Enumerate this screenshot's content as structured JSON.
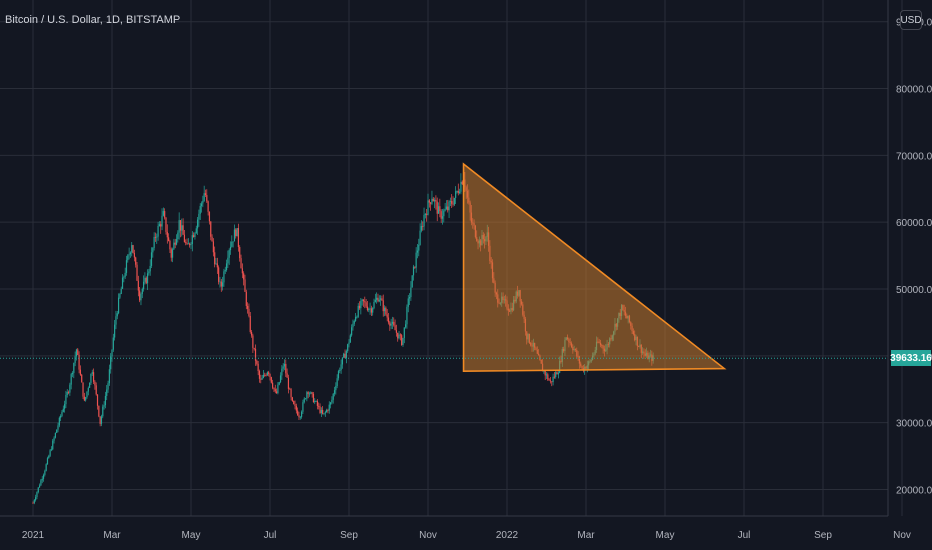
{
  "header": {
    "title": "Bitcoin / U.S. Dollar, 1D, BITSTAMP",
    "unit": "USD"
  },
  "colors": {
    "background": "#131722",
    "grid": "#2a2e39",
    "axis_text": "#b2b5be",
    "up": "#26a69a",
    "down": "#ef5350",
    "pattern_fill": "#c77a2e",
    "pattern_stroke": "#f08a24",
    "last_price_line": "#26a69a"
  },
  "chart_data": {
    "type": "candlestick",
    "x_tick_labels": [
      "2021",
      "Mar",
      "May",
      "Jul",
      "Sep",
      "Nov",
      "2022",
      "Mar",
      "May",
      "Jul",
      "Sep",
      "Nov"
    ],
    "y_tick_labels": [
      "20000.00",
      "30000.00",
      "40000.00",
      "50000.00",
      "60000.00",
      "70000.00",
      "80000.00",
      "90000.00"
    ],
    "y_ticks": [
      20000,
      30000,
      40000,
      50000,
      60000,
      70000,
      80000,
      90000
    ],
    "ylim": [
      17000,
      92000
    ],
    "grid": true,
    "last_price": 39633.16,
    "last_price_label": "39633.16",
    "price_path": [
      {
        "month": 0.0,
        "price": 18000
      },
      {
        "month": 0.3,
        "price": 23000
      },
      {
        "month": 0.6,
        "price": 29000
      },
      {
        "month": 0.9,
        "price": 35000
      },
      {
        "month": 1.1,
        "price": 41000
      },
      {
        "month": 1.3,
        "price": 33000
      },
      {
        "month": 1.5,
        "price": 38000
      },
      {
        "month": 1.7,
        "price": 30000
      },
      {
        "month": 1.9,
        "price": 36000
      },
      {
        "month": 2.1,
        "price": 46000
      },
      {
        "month": 2.3,
        "price": 52000
      },
      {
        "month": 2.5,
        "price": 57000
      },
      {
        "month": 2.7,
        "price": 49000
      },
      {
        "month": 2.9,
        "price": 52000
      },
      {
        "month": 3.1,
        "price": 58000
      },
      {
        "month": 3.3,
        "price": 61000
      },
      {
        "month": 3.5,
        "price": 55000
      },
      {
        "month": 3.7,
        "price": 60000
      },
      {
        "month": 3.9,
        "price": 56000
      },
      {
        "month": 4.1,
        "price": 59000
      },
      {
        "month": 4.35,
        "price": 64800
      },
      {
        "month": 4.55,
        "price": 56000
      },
      {
        "month": 4.75,
        "price": 50000
      },
      {
        "month": 4.95,
        "price": 56000
      },
      {
        "month": 5.15,
        "price": 59000
      },
      {
        "month": 5.35,
        "price": 50000
      },
      {
        "month": 5.55,
        "price": 42000
      },
      {
        "month": 5.75,
        "price": 36000
      },
      {
        "month": 5.95,
        "price": 38000
      },
      {
        "month": 6.15,
        "price": 34000
      },
      {
        "month": 6.35,
        "price": 39000
      },
      {
        "month": 6.55,
        "price": 33000
      },
      {
        "month": 6.75,
        "price": 31000
      },
      {
        "month": 6.95,
        "price": 35000
      },
      {
        "month": 7.15,
        "price": 33000
      },
      {
        "month": 7.35,
        "price": 31000
      },
      {
        "month": 7.55,
        "price": 33000
      },
      {
        "month": 7.75,
        "price": 38000
      },
      {
        "month": 7.95,
        "price": 41000
      },
      {
        "month": 8.15,
        "price": 46000
      },
      {
        "month": 8.35,
        "price": 48000
      },
      {
        "month": 8.55,
        "price": 47000
      },
      {
        "month": 8.75,
        "price": 49000
      },
      {
        "month": 8.95,
        "price": 46000
      },
      {
        "month": 9.15,
        "price": 44000
      },
      {
        "month": 9.35,
        "price": 42000
      },
      {
        "month": 9.5,
        "price": 48000
      },
      {
        "month": 9.7,
        "price": 55000
      },
      {
        "month": 9.9,
        "price": 61000
      },
      {
        "month": 10.1,
        "price": 64000
      },
      {
        "month": 10.3,
        "price": 61000
      },
      {
        "month": 10.5,
        "price": 62000
      },
      {
        "month": 10.7,
        "price": 64000
      },
      {
        "month": 10.9,
        "price": 67000
      },
      {
        "month": 11.1,
        "price": 60000
      },
      {
        "month": 11.3,
        "price": 57000
      },
      {
        "month": 11.5,
        "price": 58000
      },
      {
        "month": 11.7,
        "price": 49000
      },
      {
        "month": 11.9,
        "price": 48000
      },
      {
        "month": 12.1,
        "price": 47000
      },
      {
        "month": 12.3,
        "price": 50000
      },
      {
        "month": 12.5,
        "price": 43000
      },
      {
        "month": 12.7,
        "price": 41000
      },
      {
        "month": 12.9,
        "price": 38000
      },
      {
        "month": 13.1,
        "price": 36000
      },
      {
        "month": 13.3,
        "price": 38000
      },
      {
        "month": 13.5,
        "price": 43000
      },
      {
        "month": 13.7,
        "price": 41000
      },
      {
        "month": 13.9,
        "price": 38000
      },
      {
        "month": 14.1,
        "price": 39000
      },
      {
        "month": 14.3,
        "price": 42000
      },
      {
        "month": 14.5,
        "price": 41000
      },
      {
        "month": 14.7,
        "price": 44000
      },
      {
        "month": 14.9,
        "price": 47000
      },
      {
        "month": 15.1,
        "price": 45000
      },
      {
        "month": 15.3,
        "price": 42000
      },
      {
        "month": 15.5,
        "price": 40000
      },
      {
        "month": 15.7,
        "price": 39633
      }
    ],
    "pattern": {
      "type": "descending-triangle",
      "vertices": [
        {
          "month": 10.9,
          "price": 68700
        },
        {
          "month": 10.9,
          "price": 37700
        },
        {
          "month": 17.5,
          "price": 38100
        }
      ]
    }
  }
}
